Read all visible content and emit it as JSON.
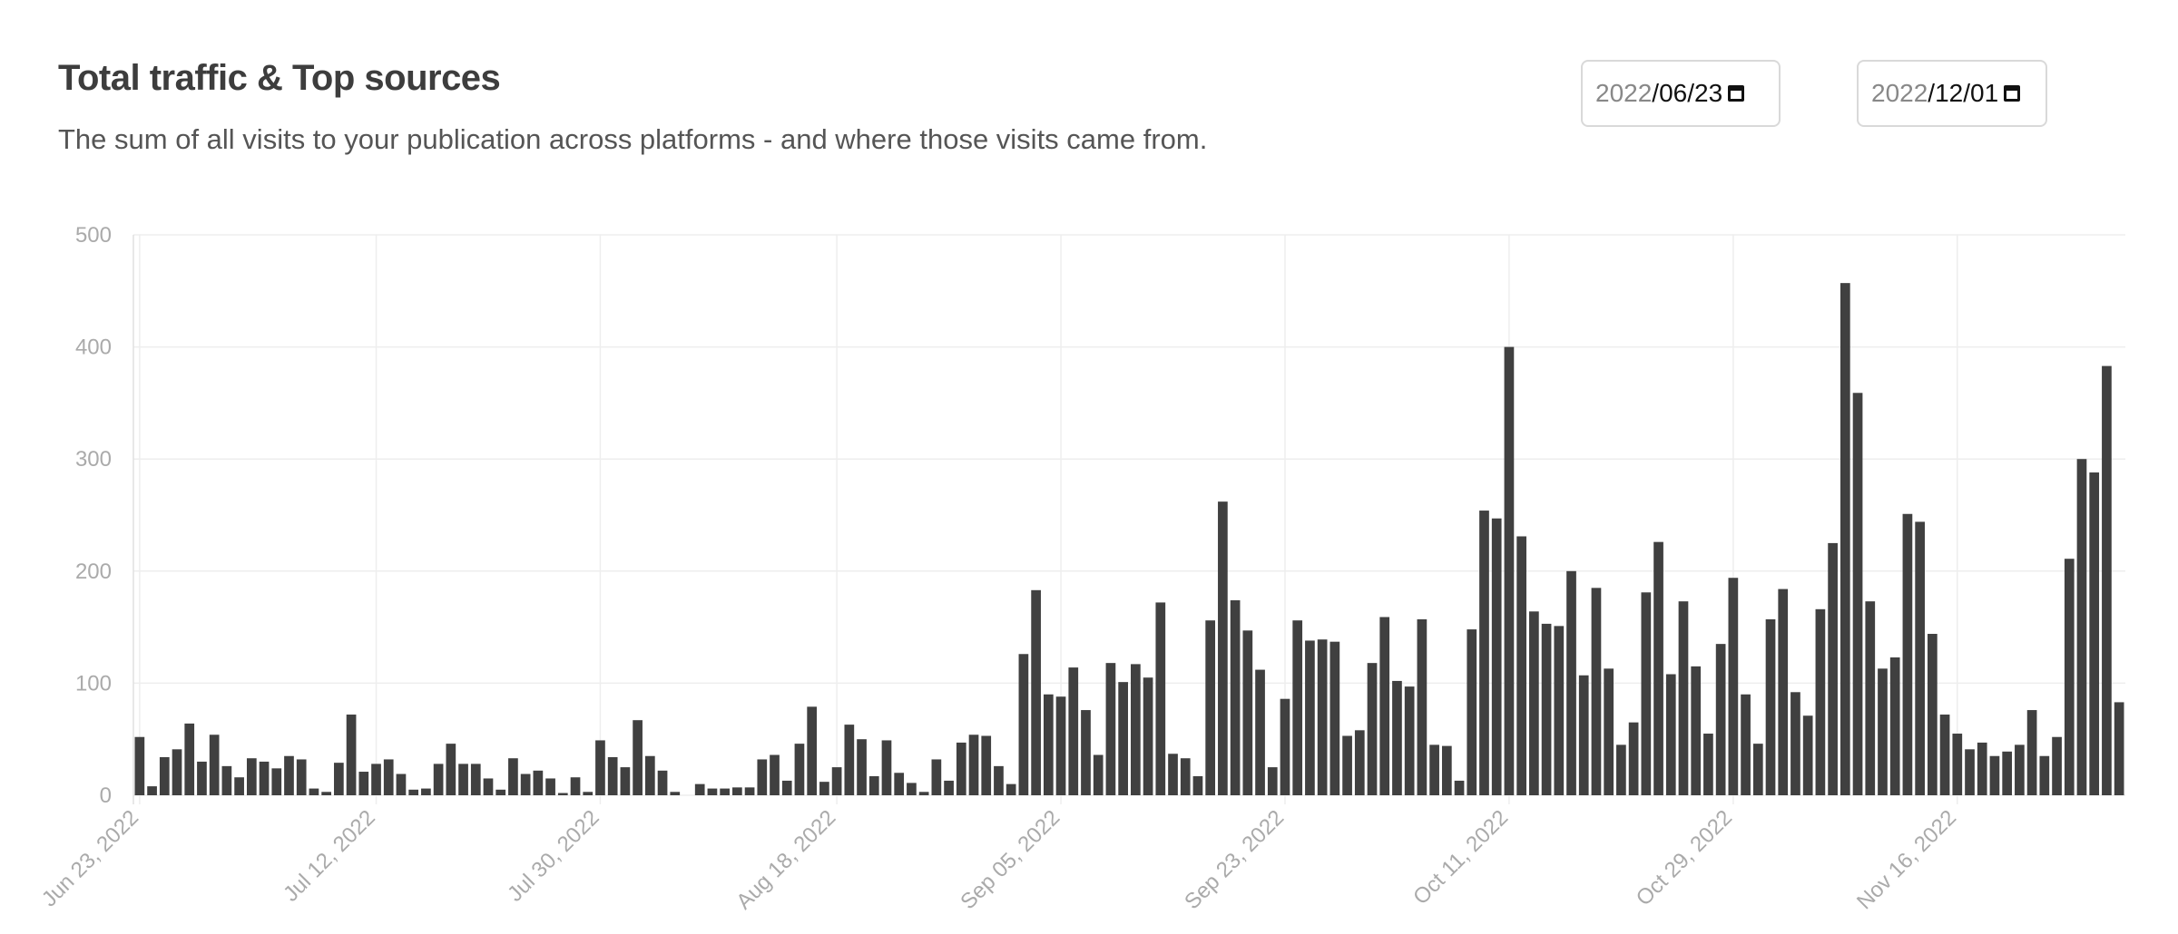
{
  "header": {
    "title": "Total traffic & Top sources",
    "subtitle": "The sum of all visits to your publication across platforms - and where those visits came from."
  },
  "date_range": {
    "start": {
      "year": "2022",
      "month_day": "/06/23",
      "icon": "calendar-icon"
    },
    "end": {
      "year": "2022",
      "month_day": "/12/01",
      "icon": "calendar-icon"
    }
  },
  "colors": {
    "bar": "#404040",
    "grid": "#eeeeee",
    "tick_text": "#aaaaaa"
  },
  "chart_data": {
    "type": "bar",
    "title": "Total traffic & Top sources",
    "xlabel": "",
    "ylabel": "",
    "ylim": [
      0,
      500
    ],
    "yticks": [
      0,
      100,
      200,
      300,
      400,
      500
    ],
    "x_tick_labels": [
      {
        "label": "Jun 23, 2022",
        "index": 0
      },
      {
        "label": "Jul 12, 2022",
        "index": 19
      },
      {
        "label": "Jul 30, 2022",
        "index": 37
      },
      {
        "label": "Aug 18, 2022",
        "index": 56
      },
      {
        "label": "Sep 05, 2022",
        "index": 74
      },
      {
        "label": "Sep 23, 2022",
        "index": 92
      },
      {
        "label": "Oct 11, 2022",
        "index": 110
      },
      {
        "label": "Oct 29, 2022",
        "index": 128
      },
      {
        "label": "Nov 16, 2022",
        "index": 146
      }
    ],
    "grid": true,
    "start_date": "2022-06-23",
    "end_date": "2022-12-01",
    "values": [
      52,
      8,
      34,
      41,
      64,
      30,
      54,
      26,
      16,
      33,
      30,
      24,
      35,
      32,
      6,
      3,
      29,
      72,
      21,
      28,
      32,
      19,
      5,
      6,
      28,
      46,
      28,
      28,
      15,
      5,
      33,
      19,
      22,
      15,
      2,
      16,
      3,
      49,
      34,
      25,
      67,
      35,
      22,
      3,
      0,
      10,
      6,
      6,
      7,
      7,
      32,
      36,
      13,
      46,
      79,
      12,
      25,
      63,
      50,
      17,
      49,
      20,
      11,
      3,
      32,
      13,
      47,
      54,
      53,
      26,
      10,
      126,
      183,
      90,
      88,
      114,
      76,
      36,
      118,
      101,
      117,
      105,
      172,
      37,
      33,
      17,
      156,
      262,
      174,
      147,
      112,
      25,
      86,
      156,
      138,
      139,
      137,
      53,
      58,
      118,
      159,
      102,
      97,
      157,
      45,
      44,
      13,
      148,
      254,
      247,
      400,
      231,
      164,
      153,
      151,
      200,
      107,
      185,
      113,
      45,
      65,
      181,
      226,
      108,
      173,
      115,
      55,
      135,
      194,
      90,
      46,
      157,
      184,
      92,
      71,
      166,
      225,
      457,
      359,
      173,
      113,
      123,
      251,
      244,
      144,
      72,
      55,
      41,
      47,
      35,
      39,
      45,
      76,
      35,
      52,
      211,
      300,
      288,
      383,
      83
    ]
  }
}
